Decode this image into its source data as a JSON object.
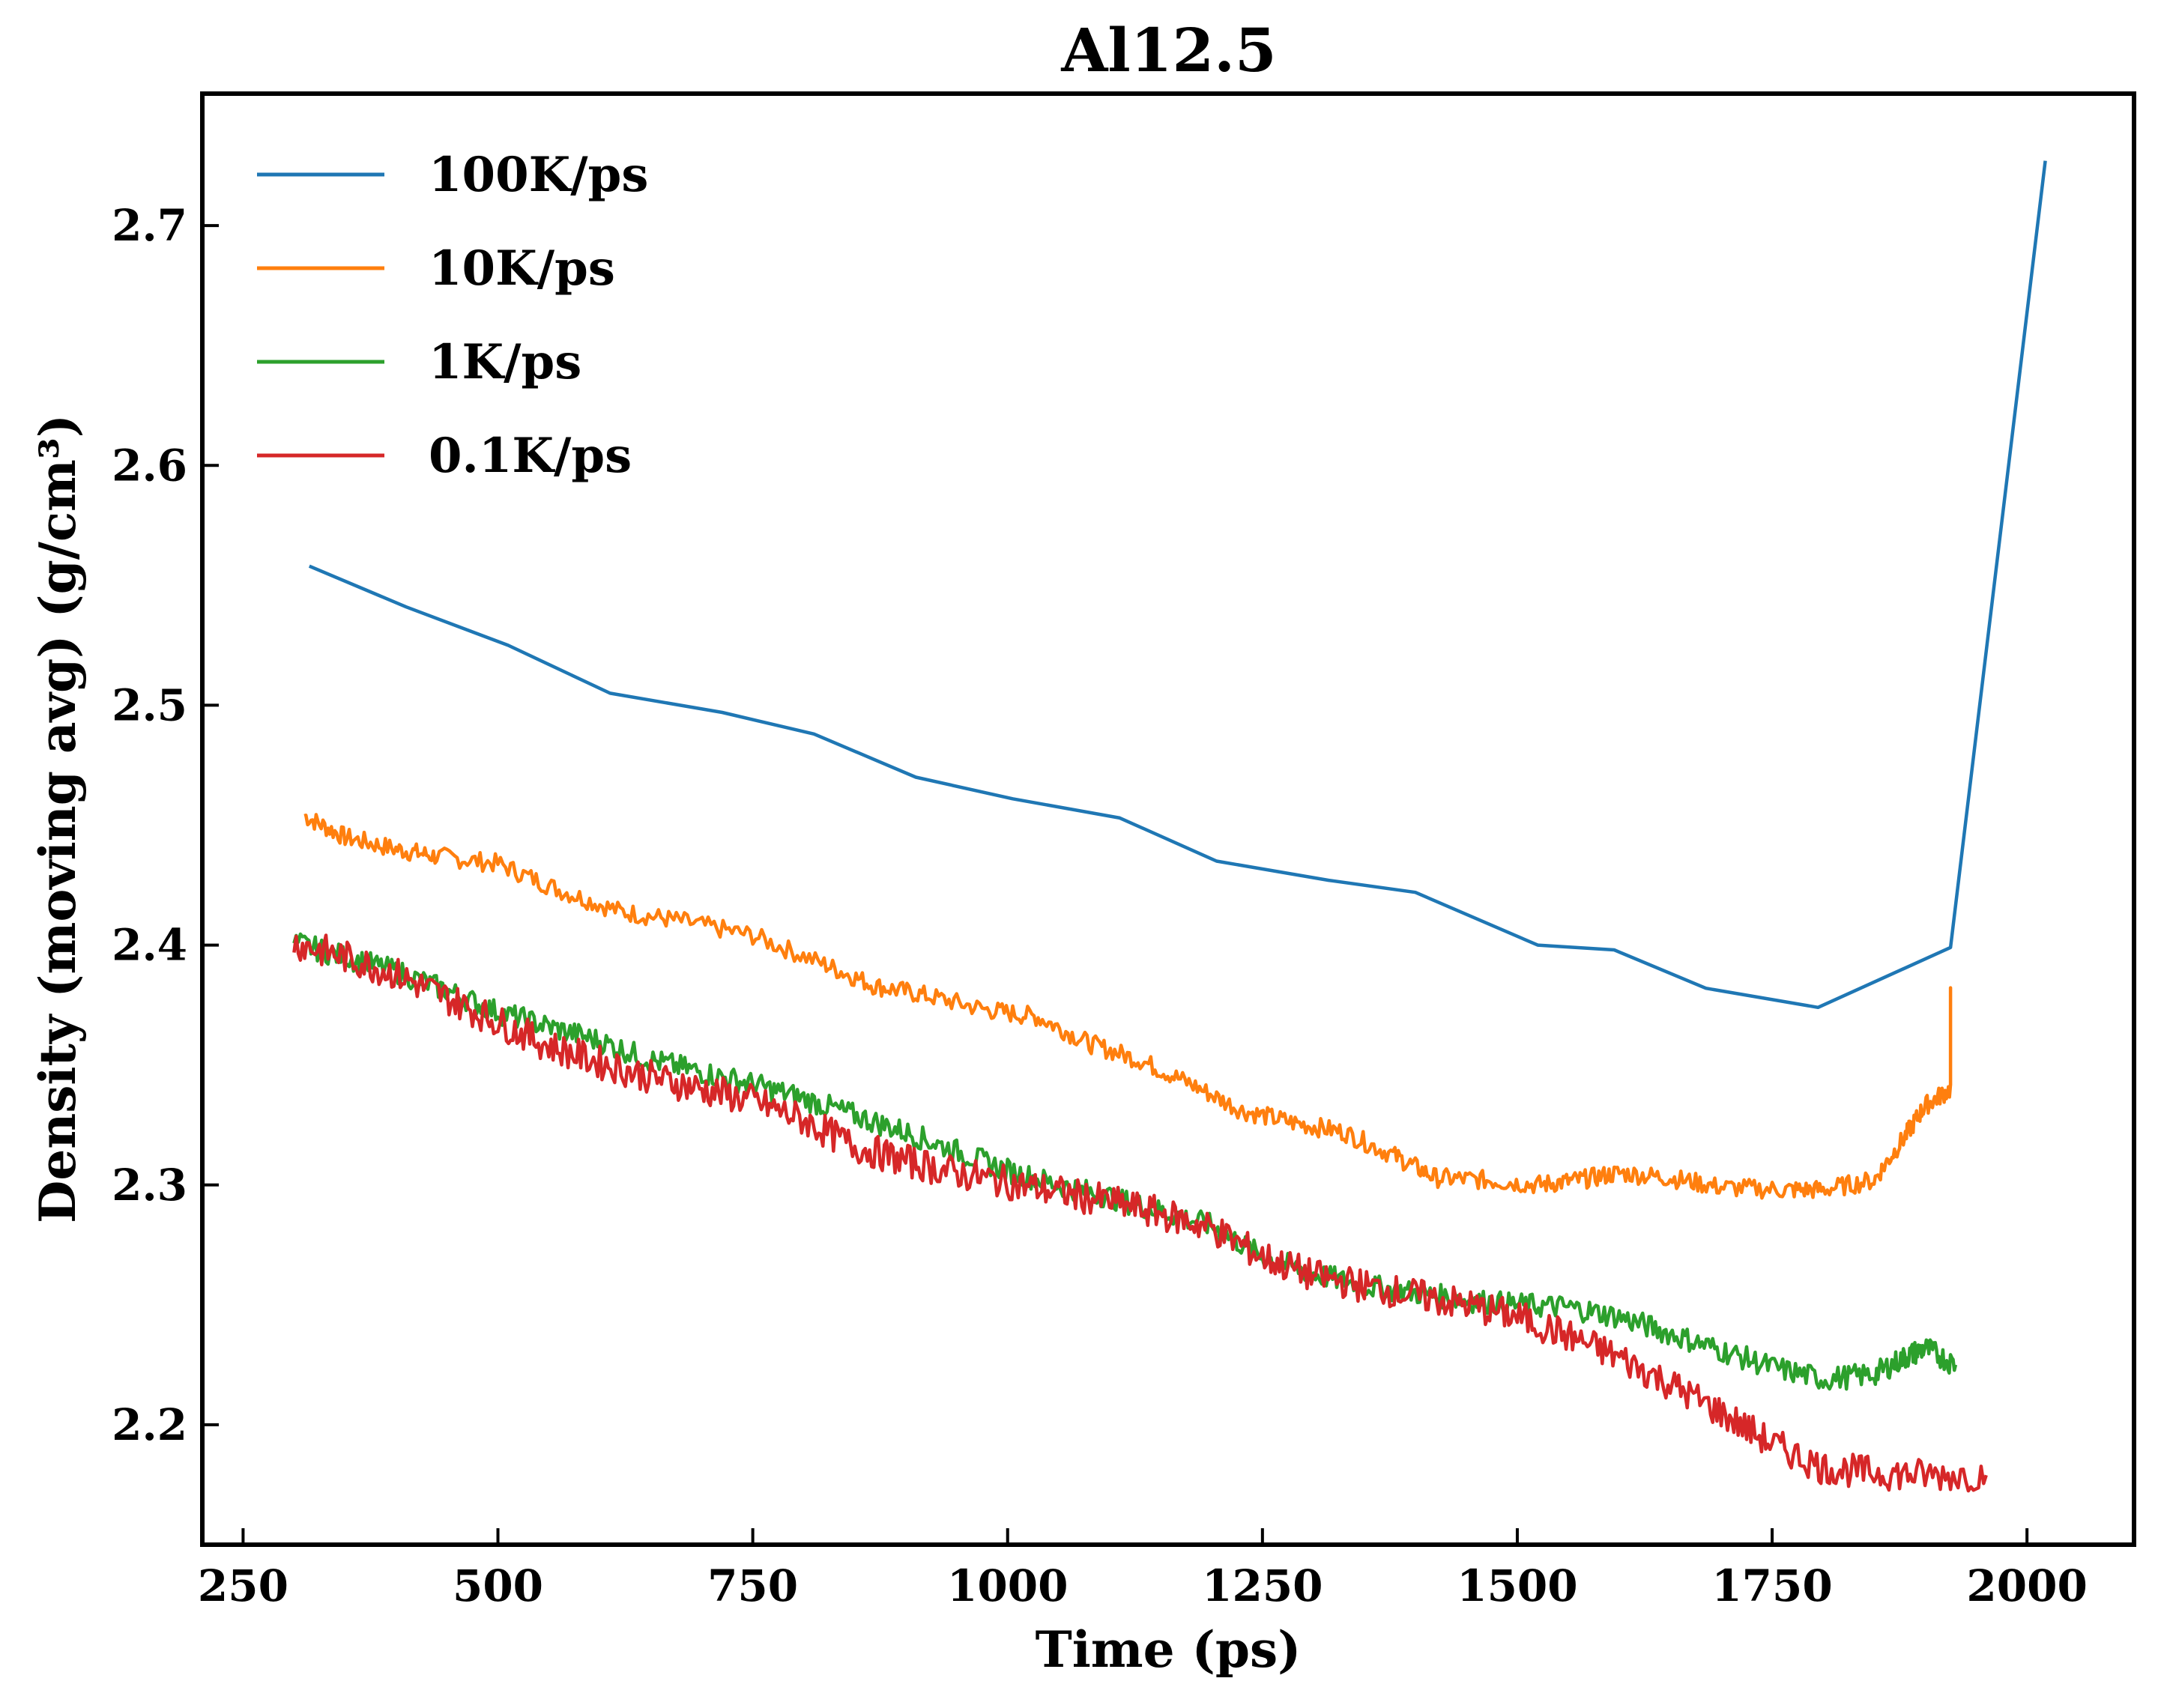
{
  "chart_data": {
    "type": "line",
    "title": "Al12.5",
    "xlabel": "Time (ps)",
    "ylabel": "Density (moving avg) (g/cm³)",
    "xlim": [
      210,
      2105
    ],
    "ylim": [
      2.15,
      2.755
    ],
    "x_ticks": [
      250,
      500,
      750,
      1000,
      1250,
      1500,
      1750,
      2000
    ],
    "y_ticks": [
      2.2,
      2.3,
      2.4,
      2.5,
      2.6,
      2.7
    ],
    "x_tick_labels": [
      "250",
      "500",
      "750",
      "1000",
      "1250",
      "1500",
      "1750",
      "2000"
    ],
    "y_tick_labels": [
      "2.2",
      "2.3",
      "2.4",
      "2.5",
      "2.6",
      "2.7"
    ],
    "legend_position": "top-left",
    "series": [
      {
        "name": "100K/ps",
        "color": "#1f77b4",
        "noise": 0,
        "x": [
          315,
          410,
          510,
          610,
          720,
          810,
          910,
          1005,
          1110,
          1205,
          1315,
          1400,
          1520,
          1595,
          1685,
          1795,
          1925,
          2018
        ],
        "y": [
          2.558,
          2.541,
          2.525,
          2.505,
          2.497,
          2.488,
          2.47,
          2.461,
          2.453,
          2.435,
          2.427,
          2.422,
          2.4,
          2.398,
          2.382,
          2.374,
          2.399,
          2.727
        ]
      },
      {
        "name": "10K/ps",
        "color": "#ff7f0e",
        "noise": 0.004,
        "x": [
          310,
          350,
          400,
          440,
          500,
          560,
          620,
          680,
          750,
          820,
          870,
          920,
          980,
          1030,
          1080,
          1130,
          1180,
          1230,
          1280,
          1330,
          1380,
          1420,
          1470,
          1520,
          1560,
          1600,
          1650,
          1700,
          1760,
          1800,
          1850,
          1880,
          1900,
          1925,
          1925
        ],
        "y": [
          2.454,
          2.445,
          2.44,
          2.437,
          2.434,
          2.423,
          2.414,
          2.41,
          2.404,
          2.392,
          2.383,
          2.379,
          2.373,
          2.37,
          2.359,
          2.352,
          2.342,
          2.331,
          2.326,
          2.322,
          2.312,
          2.303,
          2.302,
          2.3,
          2.302,
          2.305,
          2.303,
          2.299,
          2.298,
          2.298,
          2.302,
          2.32,
          2.333,
          2.34,
          2.381
        ]
      },
      {
        "name": "1K/ps",
        "color": "#2ca02c",
        "noise": 0.005,
        "x": [
          300,
          350,
          400,
          450,
          500,
          550,
          600,
          650,
          700,
          750,
          800,
          850,
          900,
          950,
          1000,
          1050,
          1100,
          1150,
          1200,
          1250,
          1300,
          1350,
          1400,
          1450,
          1500,
          1550,
          1600,
          1650,
          1700,
          1750,
          1800,
          1850,
          1880,
          1900,
          1930
        ],
        "y": [
          2.401,
          2.395,
          2.389,
          2.381,
          2.372,
          2.366,
          2.36,
          2.352,
          2.347,
          2.342,
          2.336,
          2.329,
          2.322,
          2.314,
          2.306,
          2.3,
          2.295,
          2.289,
          2.283,
          2.27,
          2.263,
          2.258,
          2.255,
          2.252,
          2.25,
          2.249,
          2.245,
          2.238,
          2.231,
          2.224,
          2.219,
          2.221,
          2.228,
          2.232,
          2.225
        ]
      },
      {
        "name": "0.1K/ps",
        "color": "#d62728",
        "noise": 0.007,
        "x": [
          300,
          350,
          400,
          450,
          500,
          550,
          600,
          650,
          700,
          750,
          800,
          850,
          900,
          950,
          1000,
          1050,
          1100,
          1150,
          1200,
          1250,
          1300,
          1350,
          1400,
          1450,
          1500,
          1550,
          1600,
          1650,
          1700,
          1750,
          1800,
          1850,
          1900,
          1960
        ],
        "y": [
          2.401,
          2.395,
          2.388,
          2.378,
          2.368,
          2.358,
          2.351,
          2.345,
          2.34,
          2.335,
          2.327,
          2.316,
          2.31,
          2.305,
          2.301,
          2.297,
          2.293,
          2.288,
          2.282,
          2.27,
          2.262,
          2.258,
          2.254,
          2.25,
          2.245,
          2.237,
          2.228,
          2.217,
          2.205,
          2.192,
          2.182,
          2.18,
          2.179,
          2.179
        ]
      }
    ]
  }
}
